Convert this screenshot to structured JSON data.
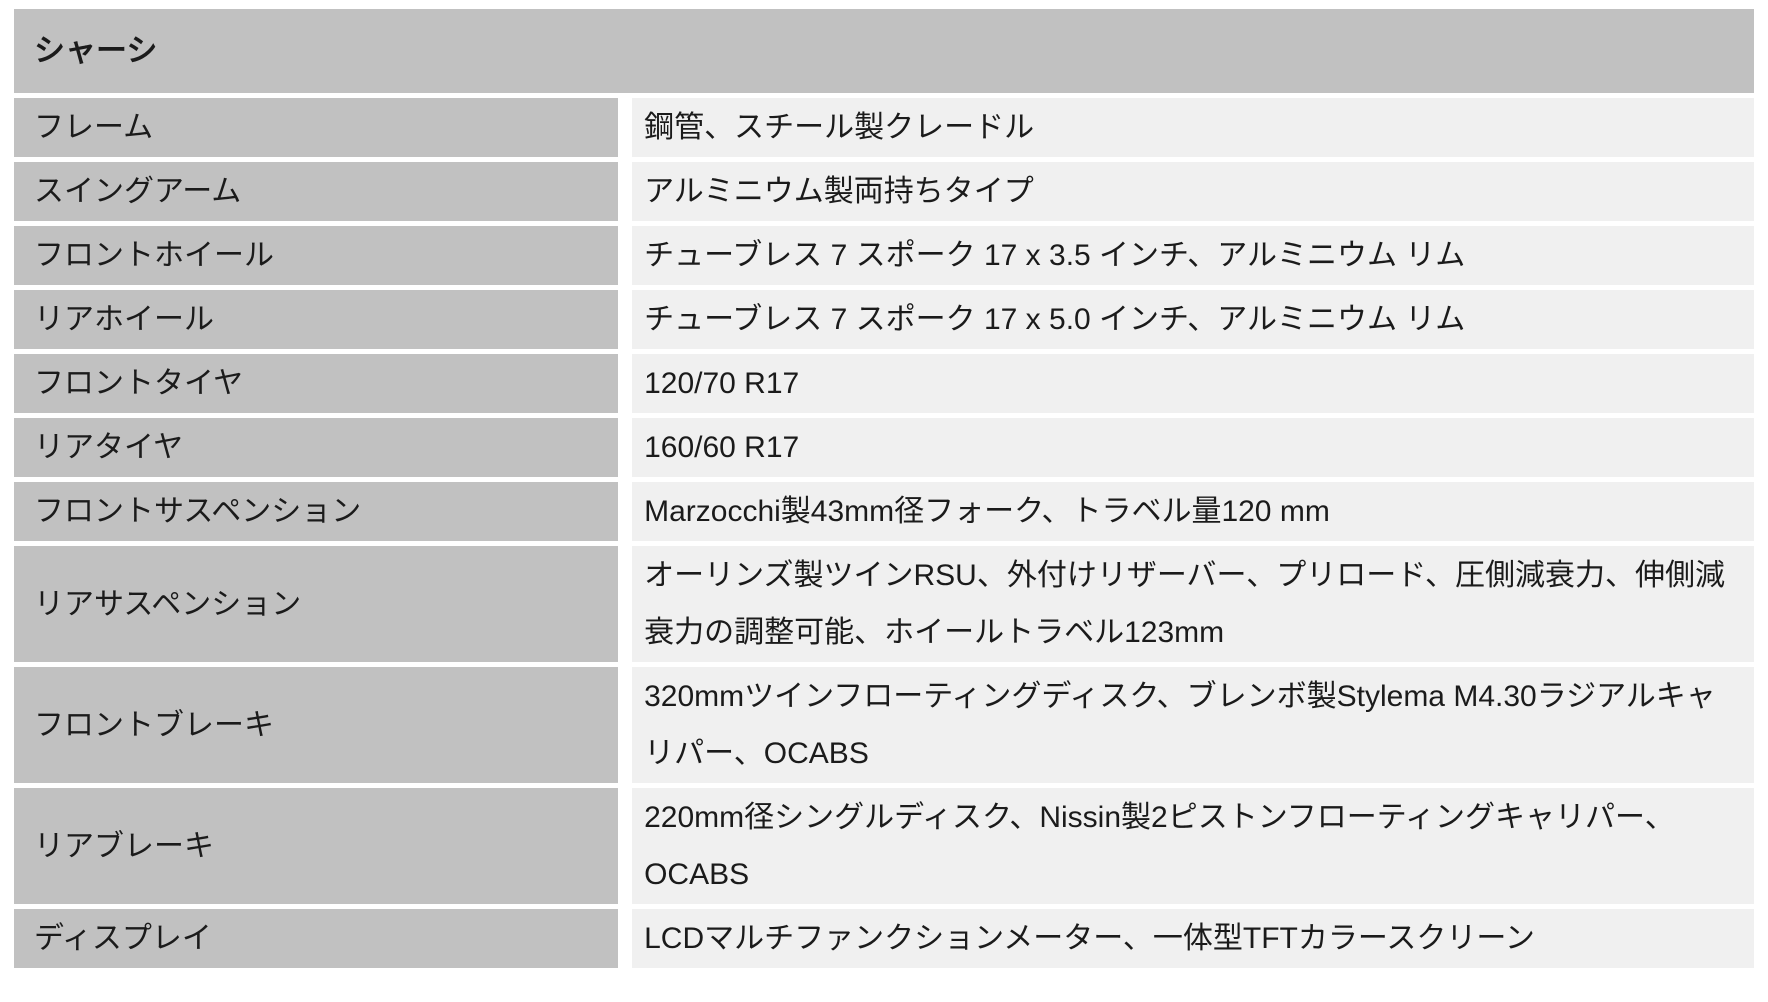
{
  "section": {
    "header": "シャーシ"
  },
  "colors": {
    "header_bg": "#c1c1c1",
    "label_bg": "#c1c1c1",
    "value_bg": "#f0f0f0",
    "text": "#1b1b1b",
    "page_bg": "#ffffff"
  },
  "rows": [
    {
      "label": "フレーム",
      "value": "鋼管、スチール製クレードル"
    },
    {
      "label": "スイングアーム",
      "value": "アルミニウム製両持ちタイプ"
    },
    {
      "label": "フロントホイール",
      "value": "チューブレス 7 スポーク 17 x 3.5 インチ、アルミニウム リム"
    },
    {
      "label": "リアホイール",
      "value": "チューブレス 7 スポーク 17 x 5.0 インチ、アルミニウム リム"
    },
    {
      "label": "フロントタイヤ",
      "value": "120/70 R17"
    },
    {
      "label": "リアタイヤ",
      "value": "160/60 R17"
    },
    {
      "label": "フロントサスペンション",
      "value": "Marzocchi製43mm径フォーク、トラベル量120 mm"
    },
    {
      "label": "リアサスペンション",
      "value": "オーリンズ製ツインRSU、外付けリザーバー、プリロード、圧側減衰力、伸側減衰力の調整可能、ホイールトラベル123mm"
    },
    {
      "label": "フロントブレーキ",
      "value": "320mmツインフローティングディスク、ブレンボ製Stylema M4.30ラジアルキャリパー、OCABS"
    },
    {
      "label": "リアブレーキ",
      "value": "220mm径シングルディスク、Nissin製2ピストンフローティングキャリパー、OCABS"
    },
    {
      "label": "ディスプレイ",
      "value": "LCDマルチファンクションメーター、一体型TFTカラースクリーン"
    }
  ]
}
